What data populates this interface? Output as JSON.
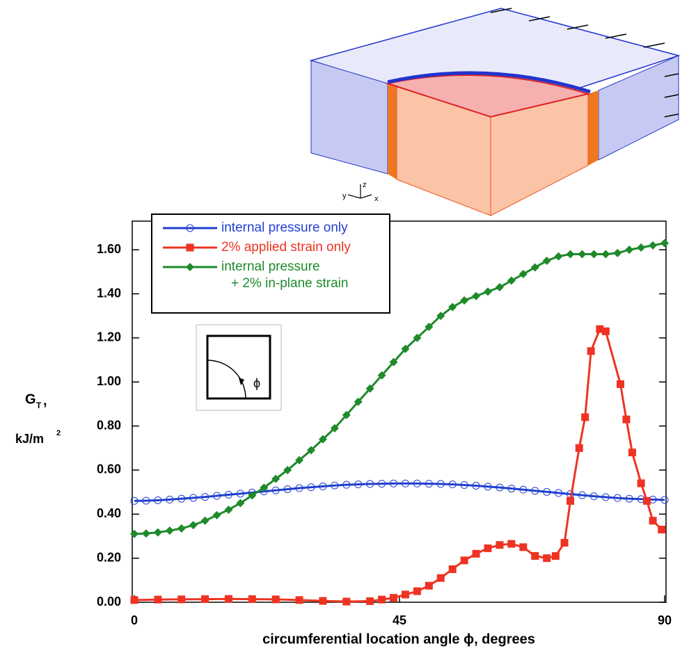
{
  "chart_data": {
    "type": "line",
    "xlabel": "circumferential location angle ϕ, degrees",
    "ylabel": {
      "symbol": "G",
      "subscript": "T",
      "separator": ",",
      "units": "kJ/m",
      "units_superscript": "2"
    },
    "xlim": [
      0,
      90
    ],
    "ylim": [
      0,
      1.73
    ],
    "xticks": [
      0,
      45,
      90
    ],
    "yticks": [
      {
        "value": 0,
        "label": "0.00"
      },
      {
        "value": 0.2,
        "label": "0.20"
      },
      {
        "value": 0.4,
        "label": "0.40"
      },
      {
        "value": 0.6,
        "label": "0.60"
      },
      {
        "value": 0.8,
        "label": "0.80"
      },
      {
        "value": 1.0,
        "label": "1.00"
      },
      {
        "value": 1.2,
        "label": "1.20"
      },
      {
        "value": 1.4,
        "label": "1.40"
      },
      {
        "value": 1.6,
        "label": "1.60"
      }
    ],
    "legend": "top-left",
    "inset_label": "ϕ",
    "model_axes_labels": [
      "y",
      "z",
      "x"
    ],
    "series": [
      {
        "name": "internal pressure only",
        "color": "#1f3fd0",
        "marker": "circle",
        "x": [
          0,
          2,
          4,
          6,
          8,
          10,
          12,
          14,
          16,
          18,
          20,
          22,
          24,
          26,
          28,
          30,
          32,
          34,
          36,
          38,
          40,
          42,
          44,
          46,
          48,
          50,
          52,
          54,
          56,
          58,
          60,
          62,
          64,
          66,
          68,
          70,
          72,
          74,
          76,
          78,
          80,
          82,
          84,
          86,
          88,
          90
        ],
        "values": [
          0.46,
          0.461,
          0.463,
          0.466,
          0.47,
          0.474,
          0.478,
          0.483,
          0.488,
          0.493,
          0.498,
          0.503,
          0.508,
          0.513,
          0.518,
          0.522,
          0.526,
          0.53,
          0.533,
          0.535,
          0.537,
          0.538,
          0.539,
          0.539,
          0.539,
          0.538,
          0.537,
          0.535,
          0.532,
          0.529,
          0.525,
          0.521,
          0.516,
          0.511,
          0.506,
          0.501,
          0.496,
          0.491,
          0.486,
          0.481,
          0.477,
          0.473,
          0.47,
          0.468,
          0.466,
          0.465
        ]
      },
      {
        "name": "2% applied strain only",
        "color": "#ee3322",
        "marker": "square",
        "x": [
          0,
          4,
          8,
          12,
          16,
          20,
          24,
          28,
          32,
          36,
          40,
          42,
          44,
          46,
          48,
          50,
          52,
          54,
          56,
          58,
          60,
          62,
          64,
          66,
          68,
          70,
          71.5,
          73,
          74,
          75.5,
          76.5,
          77.5,
          79,
          80,
          82.5,
          83.5,
          84.5,
          86,
          87,
          88,
          89.5
        ],
        "values": [
          0.01,
          0.012,
          0.013,
          0.014,
          0.015,
          0.014,
          0.013,
          0.01,
          0.006,
          0.003,
          0.005,
          0.012,
          0.02,
          0.035,
          0.05,
          0.075,
          0.11,
          0.15,
          0.19,
          0.22,
          0.245,
          0.26,
          0.265,
          0.25,
          0.21,
          0.2,
          0.21,
          0.27,
          0.46,
          0.7,
          0.84,
          1.14,
          1.24,
          1.23,
          0.99,
          0.83,
          0.68,
          0.54,
          0.46,
          0.37,
          0.33
        ]
      },
      {
        "name": "internal pressure\n+ 2% in-plane strain",
        "color": "#1e8a2a",
        "marker": "diamond",
        "x": [
          0,
          2,
          4,
          6,
          8,
          10,
          12,
          14,
          16,
          18,
          20,
          22,
          24,
          26,
          28,
          30,
          32,
          34,
          36,
          38,
          40,
          42,
          44,
          46,
          48,
          50,
          52,
          54,
          56,
          58,
          60,
          62,
          64,
          66,
          68,
          70,
          72,
          74,
          76,
          78,
          80,
          82,
          84,
          86,
          88,
          90
        ],
        "values": [
          0.31,
          0.312,
          0.317,
          0.325,
          0.335,
          0.35,
          0.37,
          0.395,
          0.42,
          0.45,
          0.485,
          0.52,
          0.56,
          0.6,
          0.645,
          0.69,
          0.74,
          0.79,
          0.85,
          0.91,
          0.97,
          1.03,
          1.09,
          1.15,
          1.2,
          1.25,
          1.3,
          1.34,
          1.37,
          1.39,
          1.41,
          1.43,
          1.46,
          1.49,
          1.52,
          1.55,
          1.57,
          1.58,
          1.58,
          1.58,
          1.58,
          1.585,
          1.6,
          1.61,
          1.62,
          1.63
        ]
      }
    ]
  }
}
